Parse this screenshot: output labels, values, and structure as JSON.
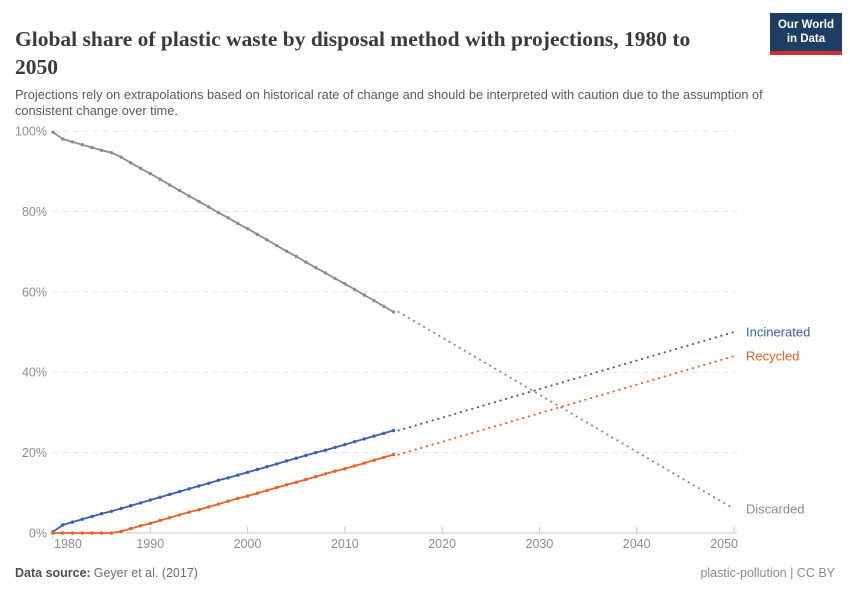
{
  "header": {
    "title": "Global share of plastic waste by disposal method with projections, 1980 to 2050",
    "subtitle": "Projections rely on extrapolations based on historical rate of change and should be interpreted with caution due to the assumption of consistent change over time.",
    "logo": {
      "line1": "Our World",
      "line2": "in Data",
      "bg_color": "#1d3d63",
      "accent_color": "#cf3130"
    }
  },
  "footer": {
    "source_label": "Data source:",
    "source_value": "Geyer et al. (2017)",
    "license": "plastic-pollution | CC BY"
  },
  "chart_data": {
    "type": "line",
    "title": "Global share of plastic waste by disposal method with projections, 1980 to 2050",
    "xlabel": "",
    "ylabel": "",
    "xlim": [
      1980,
      2050
    ],
    "ylim": [
      0,
      100
    ],
    "grid": true,
    "legend_position": "right-end-labels",
    "x_ticks": [
      1980,
      1990,
      2000,
      2010,
      2020,
      2030,
      2040,
      2050
    ],
    "y_ticks": [
      {
        "value": 0,
        "label": "0%"
      },
      {
        "value": 20,
        "label": "20%"
      },
      {
        "value": 40,
        "label": "40%"
      },
      {
        "value": 60,
        "label": "60%"
      },
      {
        "value": 80,
        "label": "80%"
      },
      {
        "value": 100,
        "label": "100%"
      }
    ],
    "years": [
      1980,
      1981,
      1982,
      1983,
      1984,
      1985,
      1986,
      1987,
      1988,
      1989,
      1990,
      1991,
      1992,
      1993,
      1994,
      1995,
      1996,
      1997,
      1998,
      1999,
      2000,
      2001,
      2002,
      2003,
      2004,
      2005,
      2006,
      2007,
      2008,
      2009,
      2010,
      2011,
      2012,
      2013,
      2014,
      2015
    ],
    "series": [
      {
        "name": "Discarded",
        "color": "#8c8c8c",
        "historical_values": [
          99.7,
          98.0,
          97.3,
          96.6,
          95.9,
          95.2,
          94.6,
          93.5,
          92.1,
          90.7,
          89.4,
          88.0,
          86.6,
          85.2,
          83.8,
          82.5,
          81.1,
          79.7,
          78.4,
          77.0,
          75.7,
          74.3,
          72.9,
          71.5,
          70.1,
          68.8,
          67.4,
          66.0,
          64.7,
          63.3,
          62.0,
          60.6,
          59.2,
          57.8,
          56.4,
          55.0
        ],
        "projection": {
          "years": [
            2015,
            2050
          ],
          "values": [
            55,
            6
          ]
        }
      },
      {
        "name": "Incinerated",
        "color": "#3862a8",
        "historical_values": [
          0.3,
          2.0,
          2.7,
          3.4,
          4.1,
          4.8,
          5.4,
          6.1,
          6.8,
          7.5,
          8.2,
          8.9,
          9.6,
          10.3,
          11.0,
          11.7,
          12.4,
          13.1,
          13.7,
          14.4,
          15.1,
          15.8,
          16.5,
          17.2,
          17.9,
          18.6,
          19.3,
          20.0,
          20.6,
          21.3,
          22.0,
          22.7,
          23.4,
          24.1,
          24.8,
          25.5
        ],
        "projection": {
          "years": [
            2015,
            2050
          ],
          "values": [
            25.5,
            50
          ]
        }
      },
      {
        "name": "Recycled",
        "color": "#e8612c",
        "historical_values": [
          0,
          0,
          0,
          0,
          0,
          0,
          0,
          0.4,
          1.1,
          1.8,
          2.4,
          3.1,
          3.8,
          4.5,
          5.2,
          5.8,
          6.5,
          7.2,
          7.9,
          8.6,
          9.2,
          9.9,
          10.6,
          11.3,
          12.0,
          12.6,
          13.3,
          14.0,
          14.7,
          15.4,
          16.0,
          16.7,
          17.4,
          18.1,
          18.8,
          19.5
        ],
        "projection": {
          "years": [
            2015,
            2050
          ],
          "values": [
            19.5,
            44
          ]
        }
      }
    ],
    "style": {
      "gridline_color": "#e1e1e1",
      "axis_color": "#c8c8c8",
      "tick_label_color": "#8e8e8e"
    }
  }
}
